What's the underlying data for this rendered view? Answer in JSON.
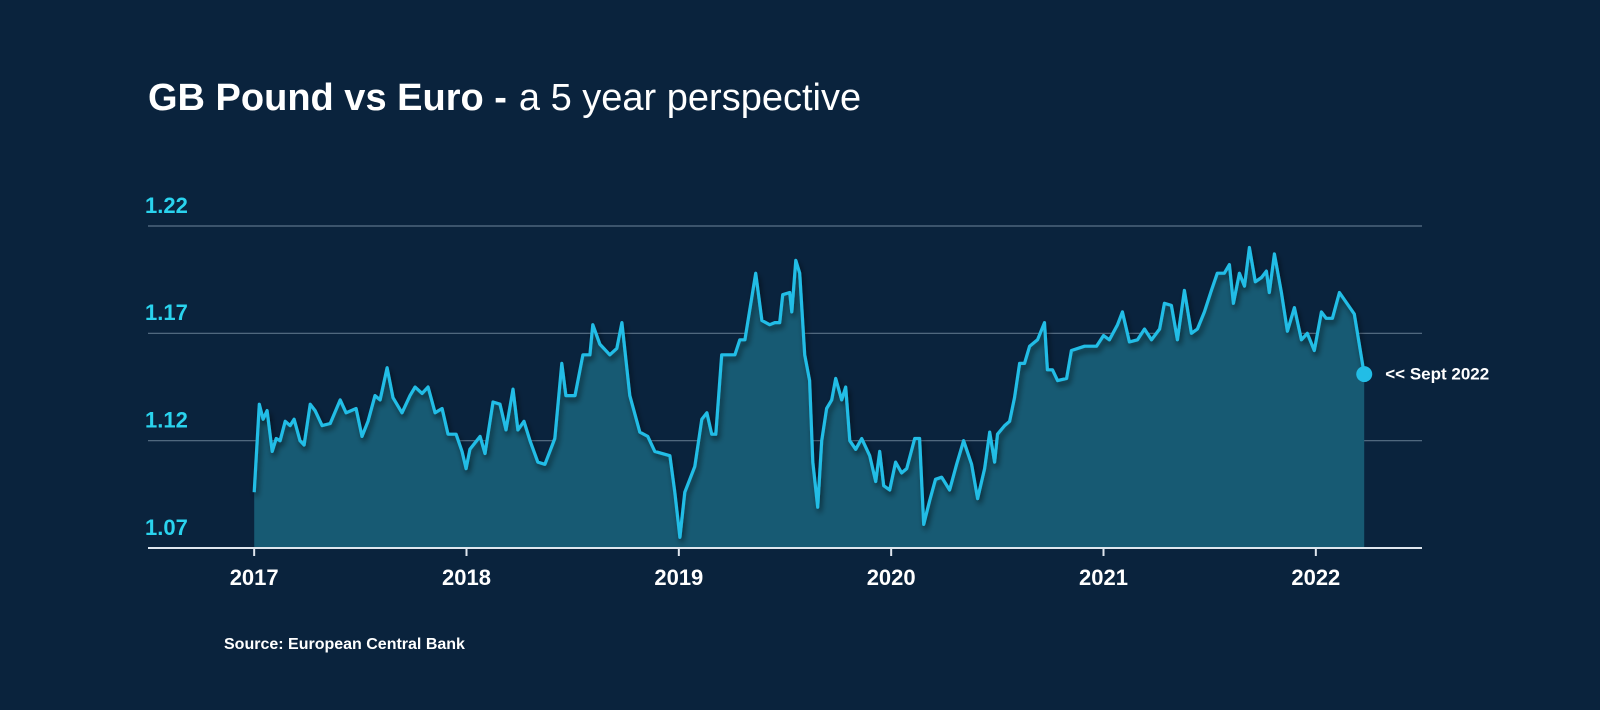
{
  "chart_data": {
    "type": "area",
    "title": "GB Pound vs Euro -",
    "subtitle": "a 5 year perspective",
    "source": "Source: European Central Bank",
    "annotation": "<< Sept 2022",
    "color": "#22bde6",
    "fill_color": "#175a73",
    "grid": true,
    "xlim": [
      2016.5,
      2022.5
    ],
    "xticks": [
      2017,
      2018,
      2019,
      2020,
      2021,
      2022
    ],
    "ylim": [
      1.07,
      1.22
    ],
    "yticks": [
      1.07,
      1.12,
      1.17,
      1.22
    ],
    "x": [
      2017.0,
      2017.024,
      2017.042,
      2017.061,
      2017.085,
      2017.104,
      2017.122,
      2017.146,
      2017.169,
      2017.188,
      2017.216,
      2017.235,
      2017.264,
      2017.287,
      2017.32,
      2017.358,
      2017.405,
      2017.433,
      2017.48,
      2017.508,
      2017.536,
      2017.569,
      2017.593,
      2017.626,
      2017.654,
      2017.696,
      2017.734,
      2017.758,
      2017.791,
      2017.819,
      2017.852,
      2017.885,
      2017.913,
      2017.951,
      2017.979,
      2017.998,
      2018.016,
      2018.064,
      2018.087,
      2018.125,
      2018.158,
      2018.186,
      2018.219,
      2018.242,
      2018.271,
      2018.299,
      2018.336,
      2018.369,
      2018.416,
      2018.449,
      2018.468,
      2018.511,
      2018.548,
      2018.581,
      2018.595,
      2018.628,
      2018.675,
      2018.708,
      2018.732,
      2018.769,
      2018.816,
      2018.854,
      2018.887,
      2018.958,
      2018.981,
      2019.005,
      2019.028,
      2019.075,
      2019.108,
      2019.132,
      2019.155,
      2019.174,
      2019.202,
      2019.264,
      2019.287,
      2019.311,
      2019.362,
      2019.391,
      2019.428,
      2019.452,
      2019.475,
      2019.489,
      2019.522,
      2019.532,
      2019.551,
      2019.569,
      2019.593,
      2019.616,
      2019.631,
      2019.654,
      2019.673,
      2019.696,
      2019.72,
      2019.739,
      2019.767,
      2019.786,
      2019.805,
      2019.833,
      2019.861,
      2019.899,
      2019.927,
      2019.946,
      2019.965,
      2019.993,
      2020.021,
      2020.049,
      2020.073,
      2020.111,
      2020.134,
      2020.153,
      2020.181,
      2020.209,
      2020.238,
      2020.275,
      2020.308,
      2020.341,
      2020.379,
      2020.407,
      2020.44,
      2020.464,
      2020.487,
      2020.501,
      2020.534,
      2020.558,
      2020.581,
      2020.605,
      2020.628,
      2020.652,
      2020.689,
      2020.722,
      2020.736,
      2020.76,
      2020.784,
      2020.826,
      2020.849,
      2020.911,
      2020.967,
      2021.0,
      2021.028,
      2021.066,
      2021.089,
      2021.122,
      2021.16,
      2021.193,
      2021.226,
      2021.264,
      2021.287,
      2021.32,
      2021.348,
      2021.381,
      2021.414,
      2021.442,
      2021.475,
      2021.508,
      2021.536,
      2021.569,
      2021.593,
      2021.612,
      2021.64,
      2021.664,
      2021.687,
      2021.715,
      2021.744,
      2021.767,
      2021.781,
      2021.805,
      2021.838,
      2021.866,
      2021.899,
      2021.932,
      2021.96,
      2021.993,
      2022.026,
      2022.049,
      2022.078,
      2022.111,
      2022.181,
      2022.228
    ],
    "values": [
      1.096,
      1.137,
      1.13,
      1.134,
      1.115,
      1.121,
      1.12,
      1.129,
      1.127,
      1.13,
      1.12,
      1.118,
      1.137,
      1.134,
      1.127,
      1.128,
      1.139,
      1.133,
      1.135,
      1.122,
      1.129,
      1.141,
      1.139,
      1.154,
      1.14,
      1.133,
      1.141,
      1.145,
      1.142,
      1.145,
      1.133,
      1.135,
      1.123,
      1.123,
      1.115,
      1.107,
      1.116,
      1.122,
      1.114,
      1.138,
      1.137,
      1.125,
      1.144,
      1.125,
      1.129,
      1.12,
      1.11,
      1.109,
      1.121,
      1.156,
      1.141,
      1.141,
      1.16,
      1.16,
      1.174,
      1.165,
      1.16,
      1.163,
      1.175,
      1.141,
      1.124,
      1.122,
      1.115,
      1.113,
      1.096,
      1.075,
      1.096,
      1.108,
      1.13,
      1.133,
      1.123,
      1.123,
      1.16,
      1.16,
      1.167,
      1.167,
      1.198,
      1.176,
      1.174,
      1.175,
      1.175,
      1.188,
      1.189,
      1.18,
      1.204,
      1.198,
      1.16,
      1.148,
      1.11,
      1.089,
      1.12,
      1.135,
      1.139,
      1.149,
      1.139,
      1.145,
      1.12,
      1.116,
      1.121,
      1.113,
      1.101,
      1.115,
      1.099,
      1.097,
      1.11,
      1.105,
      1.107,
      1.121,
      1.121,
      1.081,
      1.092,
      1.102,
      1.103,
      1.097,
      1.109,
      1.12,
      1.109,
      1.093,
      1.107,
      1.124,
      1.11,
      1.123,
      1.127,
      1.129,
      1.14,
      1.156,
      1.156,
      1.164,
      1.167,
      1.175,
      1.153,
      1.153,
      1.148,
      1.149,
      1.162,
      1.164,
      1.164,
      1.169,
      1.167,
      1.174,
      1.18,
      1.166,
      1.167,
      1.172,
      1.167,
      1.172,
      1.184,
      1.183,
      1.167,
      1.19,
      1.17,
      1.172,
      1.18,
      1.19,
      1.198,
      1.198,
      1.202,
      1.184,
      1.198,
      1.192,
      1.21,
      1.194,
      1.196,
      1.199,
      1.189,
      1.207,
      1.189,
      1.171,
      1.182,
      1.167,
      1.17,
      1.162,
      1.18,
      1.177,
      1.177,
      1.189,
      1.179,
      1.151
    ]
  }
}
